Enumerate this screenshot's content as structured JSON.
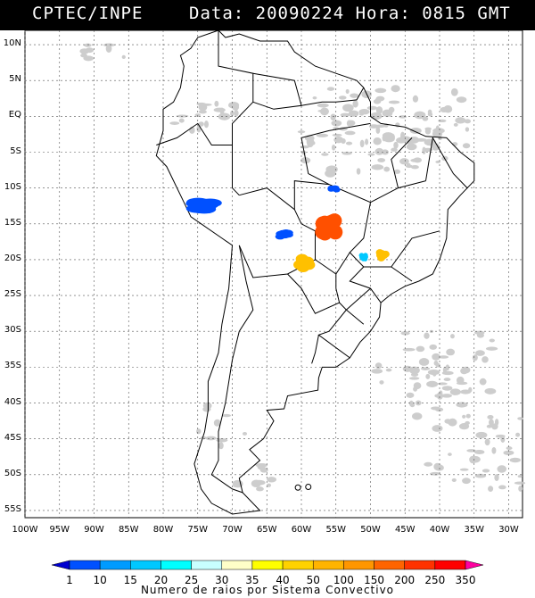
{
  "header": {
    "title": "CPTEC/INPE",
    "stamp": "Data: 20090224 Hora: 0815 GMT"
  },
  "map": {
    "lat_ticks": [
      "10N",
      "5N",
      "EQ",
      "5S",
      "10S",
      "15S",
      "20S",
      "25S",
      "30S",
      "35S",
      "40S",
      "45S",
      "50S",
      "55S"
    ],
    "lon_ticks": [
      "100W",
      "95W",
      "90W",
      "85W",
      "80W",
      "75W",
      "70W",
      "65W",
      "60W",
      "55W",
      "50W",
      "45W",
      "40W",
      "35W",
      "30W"
    ],
    "grid": true,
    "lat_range": [
      -56,
      12
    ],
    "lon_range": [
      -100,
      -28
    ]
  },
  "colorbar": {
    "labels": [
      "1",
      "10",
      "15",
      "20",
      "25",
      "30",
      "35",
      "40",
      "50",
      "100",
      "150",
      "200",
      "250",
      "350"
    ],
    "colors": [
      "#0000d0",
      "#0050ff",
      "#009bff",
      "#00c8ff",
      "#00ffff",
      "#c8ffff",
      "#ffffc8",
      "#ffff00",
      "#ffd200",
      "#ffb400",
      "#ff9600",
      "#ff6400",
      "#ff3200",
      "#ff0000",
      "#ff00a0"
    ],
    "title": "Numero de raios por Sistema Convectivo"
  },
  "systems": [
    {
      "name": "system-bolivia-west",
      "lon": -73.5,
      "lat": -12.5,
      "color": "#0050ff"
    },
    {
      "name": "system-bolivia-east",
      "lon": -62.5,
      "lat": -16.5,
      "color": "#0050ff"
    },
    {
      "name": "system-mato-grosso-north",
      "lon": -55.3,
      "lat": -10.1,
      "color": "#0050ff"
    },
    {
      "name": "system-mato-grosso",
      "lon": -56.0,
      "lat": -15.5,
      "color": "#ff5000"
    },
    {
      "name": "system-paraguay",
      "lon": -59.5,
      "lat": -20.5,
      "color": "#ffc000"
    },
    {
      "name": "system-mg-west",
      "lon": -51.0,
      "lat": -19.7,
      "color": "#00c8ff"
    },
    {
      "name": "system-mg",
      "lon": -48.2,
      "lat": -19.4,
      "color": "#ffc000"
    }
  ]
}
